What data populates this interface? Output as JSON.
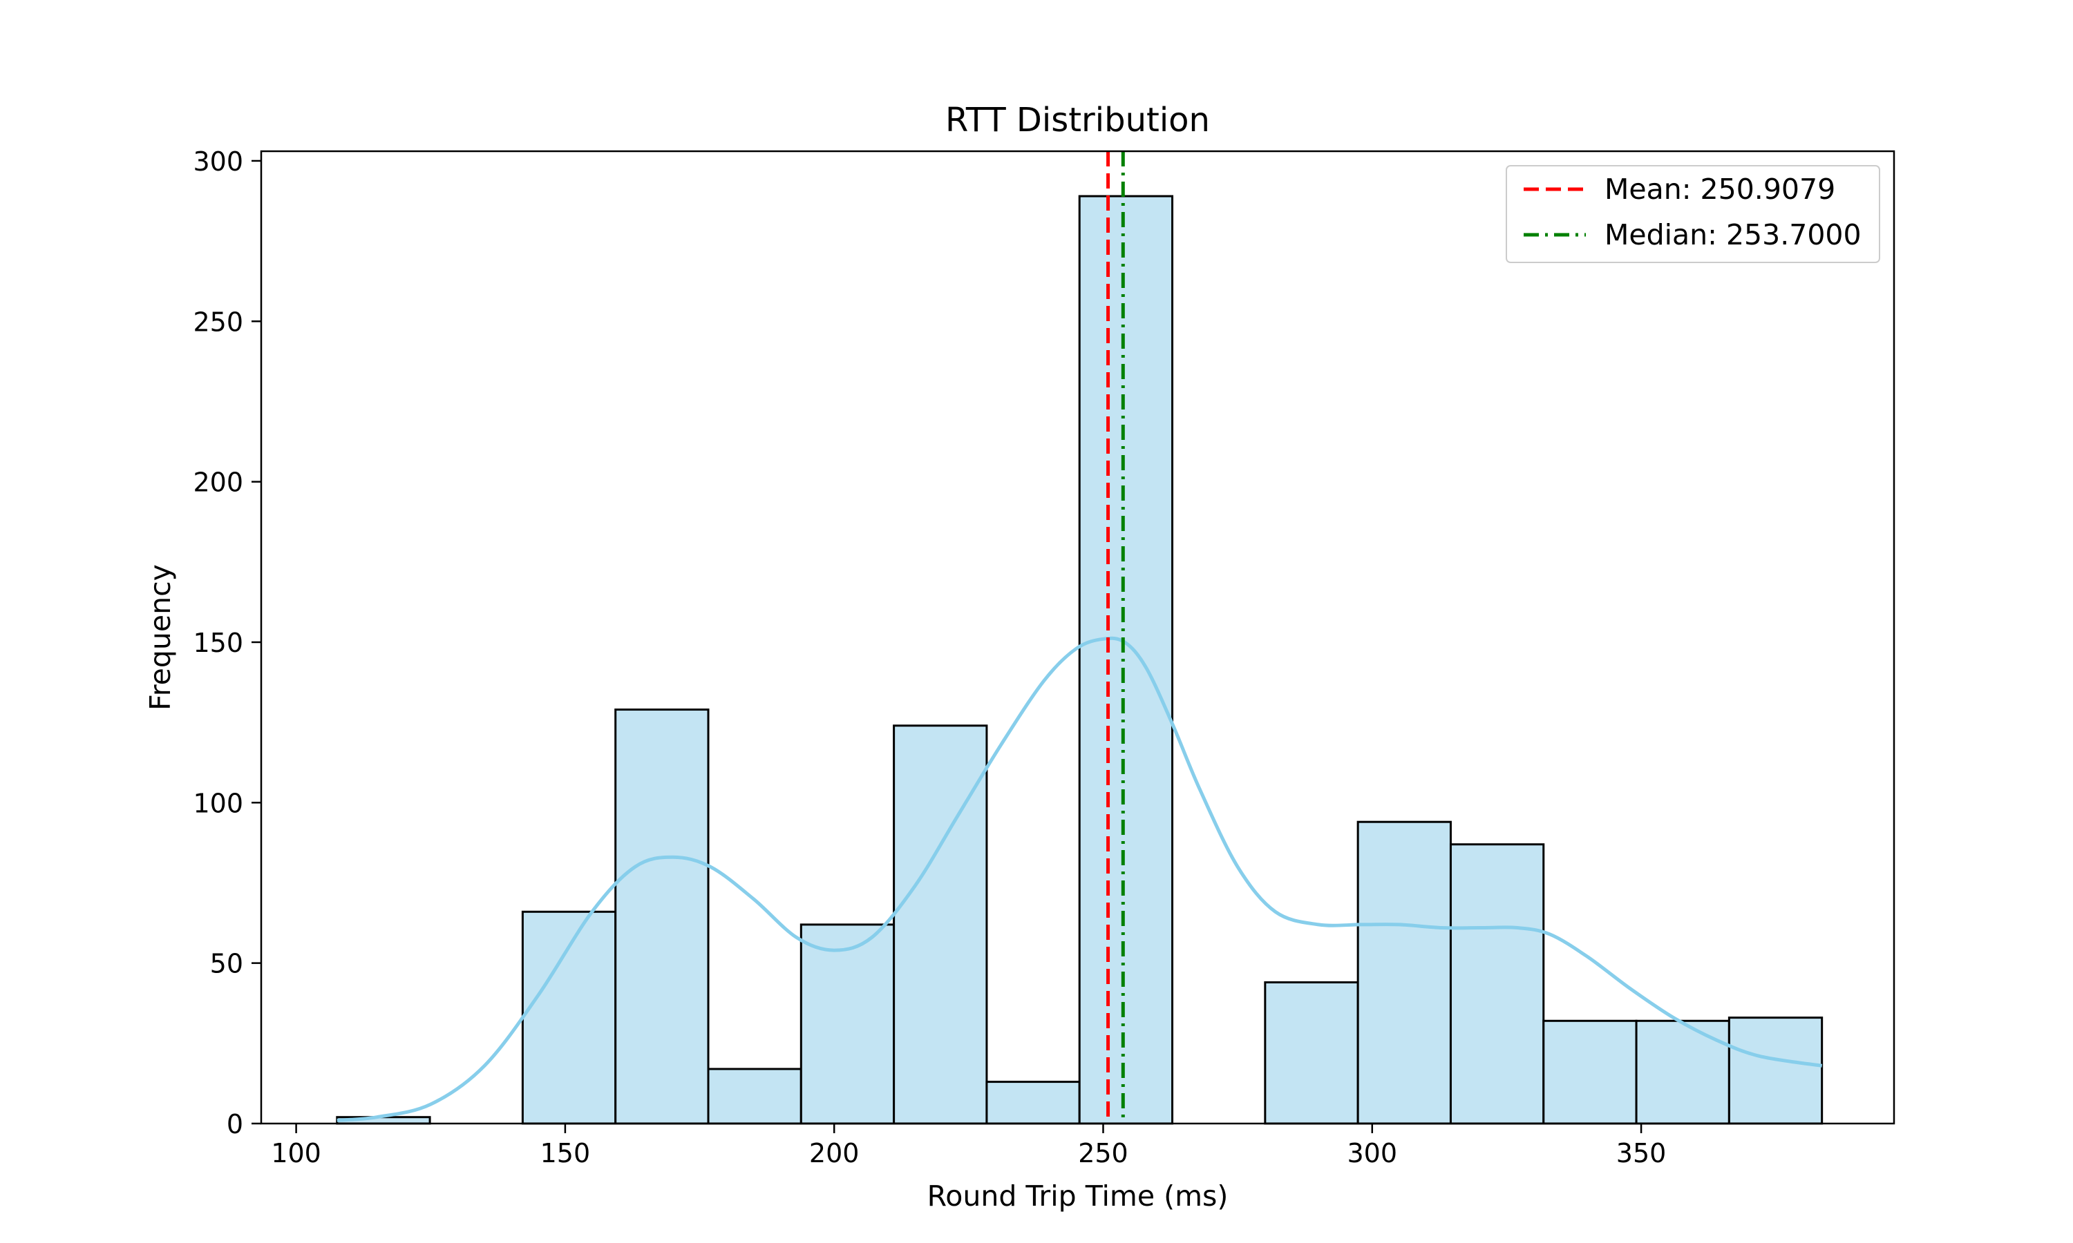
{
  "chart_data": {
    "type": "bar",
    "title": "RTT Distribution",
    "xlabel": "Round Trip Time (ms)",
    "ylabel": "Frequency",
    "xlim": [
      93.5,
      397
    ],
    "ylim": [
      0,
      303
    ],
    "xticks": [
      100,
      150,
      200,
      250,
      300,
      350
    ],
    "yticks": [
      0,
      50,
      100,
      150,
      200,
      250,
      300
    ],
    "grid": false,
    "legend_position": "top-right",
    "histogram": {
      "bin_edges": [
        107.6,
        124.85,
        142.1,
        159.35,
        176.6,
        193.85,
        211.1,
        228.35,
        245.6,
        262.85,
        280.1,
        297.35,
        314.6,
        331.85,
        349.1,
        366.35,
        383.6
      ],
      "counts": [
        2,
        0,
        66,
        129,
        17,
        62,
        124,
        13,
        289,
        0,
        44,
        94,
        87,
        32,
        32,
        33
      ],
      "fill_color": "#c3e4f3",
      "edge_color": "#000000"
    },
    "kde": {
      "color": "#87ceeb",
      "x": [
        107.6,
        115,
        125,
        135,
        145,
        155,
        163,
        170,
        177,
        185,
        193,
        200,
        207,
        215,
        223,
        231,
        239,
        245,
        250,
        254,
        258,
        263,
        268,
        275,
        282,
        290,
        298,
        305,
        313,
        320,
        327,
        333,
        340,
        348,
        356,
        364,
        372,
        383.6
      ],
      "y": [
        1,
        2,
        6,
        18,
        40,
        66,
        80,
        83,
        80,
        70,
        58,
        54,
        58,
        74,
        96,
        118,
        138,
        148,
        151,
        150,
        142,
        124,
        104,
        80,
        66,
        62,
        62,
        62,
        61,
        61,
        61,
        59,
        52,
        42,
        33,
        26,
        21,
        18
      ]
    },
    "series": [
      {
        "name": "Mean: 250.9079",
        "value": 250.9079,
        "color": "#ff0000",
        "style": "dashed"
      },
      {
        "name": "Median: 253.7000",
        "value": 253.7,
        "color": "#008000",
        "style": "dashdot"
      }
    ]
  }
}
